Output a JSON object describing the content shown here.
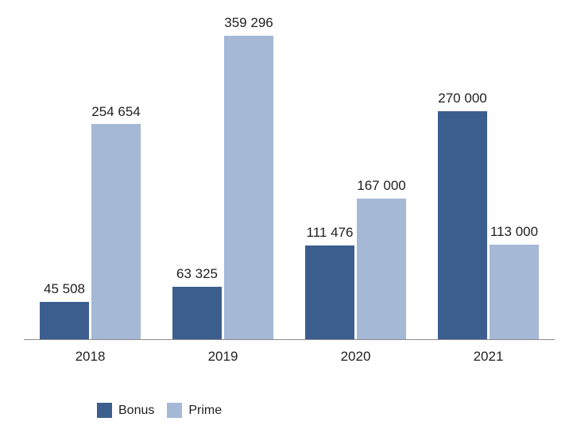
{
  "chart_data": {
    "type": "bar",
    "title": "",
    "xlabel": "",
    "ylabel": "",
    "categories": [
      "2018",
      "2019",
      "2020",
      "2021"
    ],
    "series": [
      {
        "name": "Bonus",
        "color": "#3C5E8F",
        "values": [
          45508,
          63325,
          111476,
          270000
        ],
        "labels": [
          "45 508",
          "63 325",
          "111 476",
          "270 000"
        ]
      },
      {
        "name": "Prime",
        "color": "#A5B8D6",
        "values": [
          254654,
          359296,
          167000,
          113000
        ],
        "labels": [
          "254 654",
          "359 296",
          "167 000",
          "113 000"
        ]
      }
    ],
    "ylim": [
      0,
      360000
    ],
    "grid": false,
    "y_axis_visible": false,
    "legend_position": "bottom",
    "data_labels": true,
    "axis_line_color": "#8C8C8C",
    "text_color": "#1F1F1F"
  }
}
